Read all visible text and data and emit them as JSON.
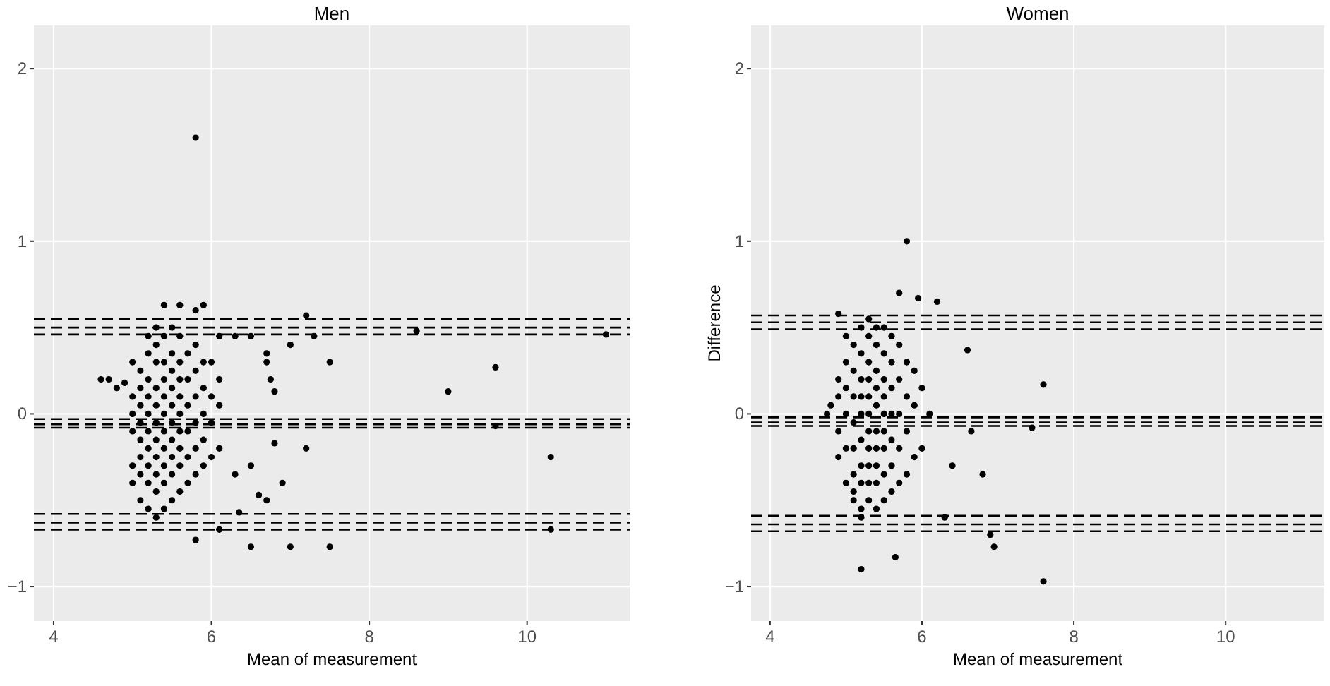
{
  "chart_data": [
    {
      "type": "scatter",
      "title": "Men",
      "xlabel": "Mean of measurement",
      "color": "#000000",
      "marker": "circle",
      "grid": true,
      "xlim": [
        3.75,
        11.3
      ],
      "ylim": [
        -1.2,
        2.25
      ],
      "xticks": [
        4,
        6,
        8,
        10
      ],
      "yticks": [
        -1,
        0,
        1,
        2
      ],
      "x": [
        5.8,
        4.6,
        4.7,
        4.8,
        4.9,
        6.5,
        6.7,
        6.7,
        6.75,
        6.8,
        7.2,
        7.0,
        7.3,
        7.5,
        8.6,
        9.0,
        9.6,
        11.0,
        9.6,
        10.3,
        10.3,
        7.2,
        6.9,
        6.8,
        6.6,
        6.7,
        6.3,
        6.5,
        5.8,
        6.5,
        7.0,
        7.5,
        6.35,
        6.1,
        5.4,
        5.6,
        5.9,
        5.8,
        6.1,
        6.3,
        5.0,
        5.0,
        5.0,
        5.0,
        5.0,
        5.0,
        5.1,
        5.1,
        5.1,
        5.1,
        5.1,
        5.1,
        5.1,
        5.1,
        5.2,
        5.2,
        5.2,
        5.2,
        5.2,
        5.2,
        5.2,
        5.2,
        5.2,
        5.2,
        5.3,
        5.3,
        5.3,
        5.3,
        5.3,
        5.3,
        5.3,
        5.3,
        5.3,
        5.3,
        5.3,
        5.4,
        5.4,
        5.4,
        5.4,
        5.4,
        5.4,
        5.4,
        5.4,
        5.4,
        5.4,
        5.5,
        5.5,
        5.5,
        5.5,
        5.5,
        5.5,
        5.5,
        5.5,
        5.5,
        5.5,
        5.6,
        5.6,
        5.6,
        5.6,
        5.6,
        5.6,
        5.6,
        5.6,
        5.6,
        5.7,
        5.7,
        5.7,
        5.7,
        5.7,
        5.7,
        5.8,
        5.8,
        5.8,
        5.8,
        5.8,
        5.8,
        5.9,
        5.9,
        5.9,
        5.9,
        5.9,
        6.0,
        6.0,
        6.0,
        6.0,
        6.1,
        6.1,
        6.1
      ],
      "values": [
        1.6,
        0.2,
        0.2,
        0.15,
        0.18,
        0.45,
        0.35,
        0.3,
        0.2,
        0.13,
        0.57,
        0.4,
        0.45,
        0.3,
        0.48,
        0.13,
        0.27,
        0.46,
        -0.07,
        -0.25,
        -0.67,
        -0.2,
        -0.4,
        -0.17,
        -0.47,
        -0.5,
        -0.35,
        -0.3,
        -0.73,
        -0.77,
        -0.77,
        -0.77,
        -0.57,
        -0.67,
        0.63,
        0.63,
        0.63,
        0.6,
        0.45,
        0.45,
        -0.1,
        0.0,
        0.1,
        -0.3,
        -0.4,
        0.3,
        -0.25,
        -0.15,
        -0.05,
        0.05,
        0.15,
        0.25,
        -0.35,
        -0.5,
        -0.55,
        -0.4,
        -0.3,
        -0.2,
        -0.1,
        0.0,
        0.1,
        0.2,
        0.35,
        0.45,
        -0.6,
        -0.45,
        -0.35,
        -0.25,
        -0.15,
        -0.05,
        0.05,
        0.15,
        0.3,
        0.4,
        0.5,
        -0.55,
        -0.4,
        -0.3,
        -0.2,
        -0.1,
        0.0,
        0.1,
        0.2,
        0.3,
        0.45,
        -0.5,
        -0.35,
        -0.25,
        -0.15,
        -0.05,
        0.05,
        0.15,
        0.25,
        0.35,
        0.5,
        -0.45,
        -0.3,
        -0.2,
        -0.1,
        0.0,
        0.1,
        0.2,
        0.3,
        0.45,
        -0.4,
        -0.25,
        -0.1,
        0.05,
        0.2,
        0.35,
        -0.35,
        -0.2,
        -0.05,
        0.1,
        0.25,
        0.4,
        -0.3,
        -0.15,
        0.0,
        0.15,
        0.3,
        -0.25,
        -0.05,
        0.1,
        0.3,
        -0.2,
        0.05,
        0.2
      ],
      "ref_lines": [
        {
          "axis": "y",
          "value": 0.55,
          "line_style": "dashed",
          "color": "#000000"
        },
        {
          "axis": "y",
          "value": 0.5,
          "line_style": "dashed",
          "color": "#000000"
        },
        {
          "axis": "y",
          "value": 0.46,
          "line_style": "dashed",
          "color": "#000000"
        },
        {
          "axis": "y",
          "value": -0.03,
          "line_style": "dashed",
          "color": "#000000"
        },
        {
          "axis": "y",
          "value": -0.06,
          "line_style": "dashed",
          "color": "#000000"
        },
        {
          "axis": "y",
          "value": -0.08,
          "line_style": "dashed",
          "color": "#000000"
        },
        {
          "axis": "y",
          "value": -0.58,
          "line_style": "dashed",
          "color": "#000000"
        },
        {
          "axis": "y",
          "value": -0.63,
          "line_style": "dashed",
          "color": "#000000"
        },
        {
          "axis": "y",
          "value": -0.67,
          "line_style": "dashed",
          "color": "#000000"
        }
      ]
    },
    {
      "type": "scatter",
      "title": "Women",
      "xlabel": "Mean of measurement",
      "ylabel": "Difference",
      "color": "#000000",
      "marker": "circle",
      "grid": true,
      "xlim": [
        3.75,
        11.3
      ],
      "ylim": [
        -1.2,
        2.25
      ],
      "xticks": [
        4,
        6,
        8,
        10
      ],
      "yticks": [
        -1,
        0,
        1,
        2
      ],
      "x": [
        5.8,
        5.7,
        5.95,
        6.2,
        4.9,
        6.6,
        7.6,
        4.8,
        4.75,
        6.8,
        6.4,
        6.9,
        6.95,
        7.6,
        5.2,
        5.65,
        6.3,
        7.45,
        6.65,
        4.9,
        4.9,
        4.9,
        4.9,
        5.0,
        5.0,
        5.0,
        5.0,
        5.0,
        5.0,
        5.1,
        5.1,
        5.1,
        5.1,
        5.1,
        5.1,
        5.1,
        5.1,
        5.2,
        5.2,
        5.2,
        5.2,
        5.2,
        5.2,
        5.2,
        5.2,
        5.2,
        5.2,
        5.3,
        5.3,
        5.3,
        5.3,
        5.3,
        5.3,
        5.3,
        5.3,
        5.3,
        5.3,
        5.3,
        5.4,
        5.4,
        5.4,
        5.4,
        5.4,
        5.4,
        5.4,
        5.4,
        5.4,
        5.4,
        5.5,
        5.5,
        5.5,
        5.5,
        5.5,
        5.5,
        5.5,
        5.5,
        5.5,
        5.6,
        5.6,
        5.6,
        5.6,
        5.6,
        5.6,
        5.6,
        5.7,
        5.7,
        5.7,
        5.7,
        5.7,
        5.8,
        5.8,
        5.8,
        5.8,
        5.9,
        5.9,
        5.9,
        6.0,
        6.0,
        6.1
      ],
      "values": [
        1.0,
        0.7,
        0.67,
        0.65,
        0.58,
        0.37,
        0.17,
        0.05,
        0.0,
        -0.35,
        -0.3,
        -0.7,
        -0.77,
        -0.97,
        -0.9,
        -0.83,
        -0.6,
        -0.08,
        -0.1,
        0.1,
        -0.1,
        -0.25,
        0.2,
        -0.4,
        -0.2,
        0.0,
        0.15,
        0.3,
        0.45,
        -0.5,
        -0.35,
        -0.2,
        -0.05,
        0.1,
        0.25,
        0.4,
        -0.45,
        -0.55,
        -0.4,
        -0.3,
        -0.15,
        0.0,
        0.1,
        0.2,
        0.35,
        0.5,
        -0.6,
        -0.5,
        -0.4,
        -0.3,
        -0.2,
        -0.1,
        0.0,
        0.1,
        0.2,
        0.3,
        0.45,
        0.55,
        -0.55,
        -0.4,
        -0.3,
        -0.2,
        -0.1,
        0.05,
        0.15,
        0.25,
        0.4,
        0.5,
        -0.5,
        -0.35,
        -0.2,
        -0.1,
        0.0,
        0.1,
        0.2,
        0.35,
        0.5,
        -0.45,
        -0.3,
        -0.15,
        0.0,
        0.15,
        0.3,
        0.45,
        -0.4,
        -0.2,
        0.0,
        0.2,
        0.4,
        -0.35,
        -0.1,
        0.1,
        0.3,
        -0.25,
        0.05,
        0.25,
        -0.2,
        0.15,
        0.0
      ],
      "ref_lines": [
        {
          "axis": "y",
          "value": 0.57,
          "line_style": "dashed",
          "color": "#000000"
        },
        {
          "axis": "y",
          "value": 0.53,
          "line_style": "dashed",
          "color": "#000000"
        },
        {
          "axis": "y",
          "value": 0.49,
          "line_style": "dashed",
          "color": "#000000"
        },
        {
          "axis": "y",
          "value": -0.02,
          "line_style": "dashed",
          "color": "#000000"
        },
        {
          "axis": "y",
          "value": -0.05,
          "line_style": "dashed",
          "color": "#000000"
        },
        {
          "axis": "y",
          "value": -0.07,
          "line_style": "dashed",
          "color": "#000000"
        },
        {
          "axis": "y",
          "value": -0.59,
          "line_style": "dashed",
          "color": "#000000"
        },
        {
          "axis": "y",
          "value": -0.64,
          "line_style": "dashed",
          "color": "#000000"
        },
        {
          "axis": "y",
          "value": -0.68,
          "line_style": "dashed",
          "color": "#000000"
        }
      ]
    }
  ]
}
